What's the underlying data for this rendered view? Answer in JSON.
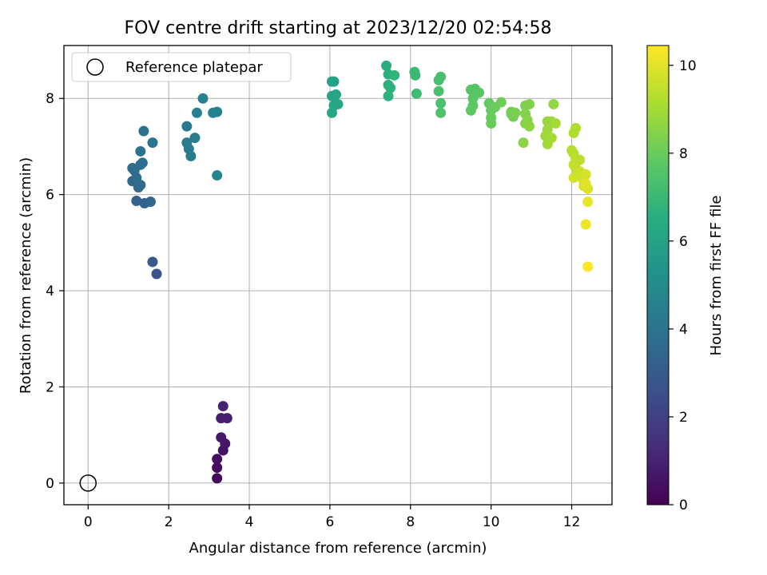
{
  "chart_data": {
    "type": "scatter",
    "title": "FOV centre drift starting at 2023/12/20 02:54:58",
    "xlabel": "Angular distance from reference (arcmin)",
    "ylabel": "Rotation from reference (arcmin)",
    "xlim": [
      -0.6,
      13.0
    ],
    "ylim": [
      -0.45,
      9.1
    ],
    "x_ticks": [
      0,
      2,
      4,
      6,
      8,
      10,
      12
    ],
    "y_ticks": [
      0,
      2,
      4,
      6,
      8
    ],
    "grid": true,
    "colormap": "viridis",
    "colorbar": {
      "label": "Hours from first FF file",
      "range": [
        0,
        10.45
      ],
      "ticks": [
        0,
        2,
        4,
        6,
        8,
        10
      ]
    },
    "legend": {
      "placement": "top-left",
      "entries": [
        {
          "label": "Reference platepar",
          "marker": "open-circle"
        }
      ]
    },
    "reference_point": {
      "x": 0,
      "y": 0
    },
    "points": [
      {
        "x": 3.2,
        "y": 0.1,
        "c": 0.2
      },
      {
        "x": 3.2,
        "y": 0.32,
        "c": 0.3
      },
      {
        "x": 3.2,
        "y": 0.5,
        "c": 0.4
      },
      {
        "x": 3.35,
        "y": 0.68,
        "c": 0.5
      },
      {
        "x": 3.4,
        "y": 0.82,
        "c": 0.6
      },
      {
        "x": 3.3,
        "y": 0.95,
        "c": 0.7
      },
      {
        "x": 3.3,
        "y": 1.35,
        "c": 0.8
      },
      {
        "x": 3.45,
        "y": 1.35,
        "c": 0.9
      },
      {
        "x": 3.35,
        "y": 1.6,
        "c": 1.0
      },
      {
        "x": 1.7,
        "y": 4.35,
        "c": 2.6
      },
      {
        "x": 1.6,
        "y": 4.6,
        "c": 2.8
      },
      {
        "x": 1.2,
        "y": 5.87,
        "c": 3.3
      },
      {
        "x": 1.4,
        "y": 5.82,
        "c": 3.3
      },
      {
        "x": 1.55,
        "y": 5.85,
        "c": 3.4
      },
      {
        "x": 1.1,
        "y": 6.28,
        "c": 3.5
      },
      {
        "x": 1.25,
        "y": 6.15,
        "c": 3.6
      },
      {
        "x": 1.3,
        "y": 6.2,
        "c": 3.6
      },
      {
        "x": 1.2,
        "y": 6.35,
        "c": 3.7
      },
      {
        "x": 1.15,
        "y": 6.5,
        "c": 3.7
      },
      {
        "x": 1.3,
        "y": 6.62,
        "c": 3.8
      },
      {
        "x": 1.35,
        "y": 6.66,
        "c": 3.8
      },
      {
        "x": 1.1,
        "y": 6.55,
        "c": 3.7
      },
      {
        "x": 1.3,
        "y": 6.9,
        "c": 3.9
      },
      {
        "x": 1.38,
        "y": 7.32,
        "c": 3.9
      },
      {
        "x": 1.6,
        "y": 7.08,
        "c": 4.0
      },
      {
        "x": 2.45,
        "y": 7.42,
        "c": 4.2
      },
      {
        "x": 2.45,
        "y": 7.08,
        "c": 4.3
      },
      {
        "x": 2.5,
        "y": 6.95,
        "c": 4.3
      },
      {
        "x": 2.55,
        "y": 6.8,
        "c": 4.4
      },
      {
        "x": 2.65,
        "y": 7.18,
        "c": 4.4
      },
      {
        "x": 2.7,
        "y": 7.7,
        "c": 4.5
      },
      {
        "x": 2.85,
        "y": 8.0,
        "c": 4.5
      },
      {
        "x": 3.1,
        "y": 7.7,
        "c": 4.6
      },
      {
        "x": 3.2,
        "y": 7.72,
        "c": 4.6
      },
      {
        "x": 3.2,
        "y": 6.4,
        "c": 4.7
      },
      {
        "x": 6.05,
        "y": 8.35,
        "c": 6.0
      },
      {
        "x": 6.1,
        "y": 8.35,
        "c": 6.0
      },
      {
        "x": 6.05,
        "y": 8.05,
        "c": 6.1
      },
      {
        "x": 6.15,
        "y": 8.08,
        "c": 6.1
      },
      {
        "x": 6.2,
        "y": 7.88,
        "c": 6.2
      },
      {
        "x": 6.1,
        "y": 7.85,
        "c": 6.2
      },
      {
        "x": 6.05,
        "y": 7.7,
        "c": 6.2
      },
      {
        "x": 7.4,
        "y": 8.68,
        "c": 6.5
      },
      {
        "x": 7.45,
        "y": 8.5,
        "c": 6.6
      },
      {
        "x": 7.45,
        "y": 8.28,
        "c": 6.6
      },
      {
        "x": 7.5,
        "y": 8.22,
        "c": 6.7
      },
      {
        "x": 7.45,
        "y": 8.05,
        "c": 6.7
      },
      {
        "x": 7.6,
        "y": 8.48,
        "c": 6.8
      },
      {
        "x": 8.1,
        "y": 8.55,
        "c": 7.0
      },
      {
        "x": 8.12,
        "y": 8.48,
        "c": 7.0
      },
      {
        "x": 8.15,
        "y": 8.1,
        "c": 7.1
      },
      {
        "x": 8.7,
        "y": 8.38,
        "c": 7.3
      },
      {
        "x": 8.75,
        "y": 8.45,
        "c": 7.3
      },
      {
        "x": 8.7,
        "y": 8.15,
        "c": 7.4
      },
      {
        "x": 8.75,
        "y": 7.9,
        "c": 7.4
      },
      {
        "x": 8.75,
        "y": 7.7,
        "c": 7.5
      },
      {
        "x": 9.5,
        "y": 8.18,
        "c": 7.6
      },
      {
        "x": 9.6,
        "y": 8.2,
        "c": 7.6
      },
      {
        "x": 9.7,
        "y": 8.12,
        "c": 7.7
      },
      {
        "x": 9.55,
        "y": 8.0,
        "c": 7.7
      },
      {
        "x": 9.55,
        "y": 7.85,
        "c": 7.8
      },
      {
        "x": 9.5,
        "y": 7.75,
        "c": 7.8
      },
      {
        "x": 9.95,
        "y": 7.9,
        "c": 7.9
      },
      {
        "x": 10.0,
        "y": 7.75,
        "c": 7.9
      },
      {
        "x": 10.0,
        "y": 7.6,
        "c": 8.0
      },
      {
        "x": 10.0,
        "y": 7.48,
        "c": 8.0
      },
      {
        "x": 10.1,
        "y": 7.82,
        "c": 8.0
      },
      {
        "x": 10.25,
        "y": 7.92,
        "c": 8.1
      },
      {
        "x": 10.5,
        "y": 7.72,
        "c": 8.2
      },
      {
        "x": 10.55,
        "y": 7.62,
        "c": 8.2
      },
      {
        "x": 10.5,
        "y": 7.68,
        "c": 8.2
      },
      {
        "x": 10.6,
        "y": 7.7,
        "c": 8.3
      },
      {
        "x": 10.85,
        "y": 7.85,
        "c": 8.3
      },
      {
        "x": 10.95,
        "y": 7.88,
        "c": 8.4
      },
      {
        "x": 10.85,
        "y": 7.68,
        "c": 8.4
      },
      {
        "x": 10.9,
        "y": 7.55,
        "c": 8.5
      },
      {
        "x": 10.85,
        "y": 7.48,
        "c": 8.5
      },
      {
        "x": 10.95,
        "y": 7.42,
        "c": 8.6
      },
      {
        "x": 10.8,
        "y": 7.08,
        "c": 8.6
      },
      {
        "x": 11.55,
        "y": 7.88,
        "c": 8.7
      },
      {
        "x": 11.4,
        "y": 7.52,
        "c": 8.8
      },
      {
        "x": 11.5,
        "y": 7.52,
        "c": 8.8
      },
      {
        "x": 11.4,
        "y": 7.35,
        "c": 8.9
      },
      {
        "x": 11.35,
        "y": 7.22,
        "c": 8.9
      },
      {
        "x": 11.5,
        "y": 7.18,
        "c": 9.0
      },
      {
        "x": 11.4,
        "y": 7.05,
        "c": 9.0
      },
      {
        "x": 11.6,
        "y": 7.48,
        "c": 9.0
      },
      {
        "x": 12.1,
        "y": 7.38,
        "c": 9.2
      },
      {
        "x": 12.05,
        "y": 7.28,
        "c": 9.2
      },
      {
        "x": 12.0,
        "y": 6.92,
        "c": 9.3
      },
      {
        "x": 12.05,
        "y": 6.85,
        "c": 9.3
      },
      {
        "x": 12.1,
        "y": 6.75,
        "c": 9.4
      },
      {
        "x": 12.2,
        "y": 6.72,
        "c": 9.4
      },
      {
        "x": 12.05,
        "y": 6.62,
        "c": 9.5
      },
      {
        "x": 12.1,
        "y": 6.55,
        "c": 9.5
      },
      {
        "x": 12.2,
        "y": 6.48,
        "c": 9.6
      },
      {
        "x": 12.15,
        "y": 6.42,
        "c": 9.6
      },
      {
        "x": 12.25,
        "y": 6.35,
        "c": 9.7
      },
      {
        "x": 12.05,
        "y": 6.35,
        "c": 9.7
      },
      {
        "x": 12.3,
        "y": 6.28,
        "c": 9.8
      },
      {
        "x": 12.35,
        "y": 6.42,
        "c": 9.8
      },
      {
        "x": 12.3,
        "y": 6.18,
        "c": 9.9
      },
      {
        "x": 12.4,
        "y": 6.12,
        "c": 9.9
      },
      {
        "x": 12.35,
        "y": 6.22,
        "c": 10.0
      },
      {
        "x": 12.4,
        "y": 5.85,
        "c": 10.1
      },
      {
        "x": 12.35,
        "y": 5.38,
        "c": 10.2
      },
      {
        "x": 12.4,
        "y": 4.5,
        "c": 10.4
      }
    ]
  }
}
